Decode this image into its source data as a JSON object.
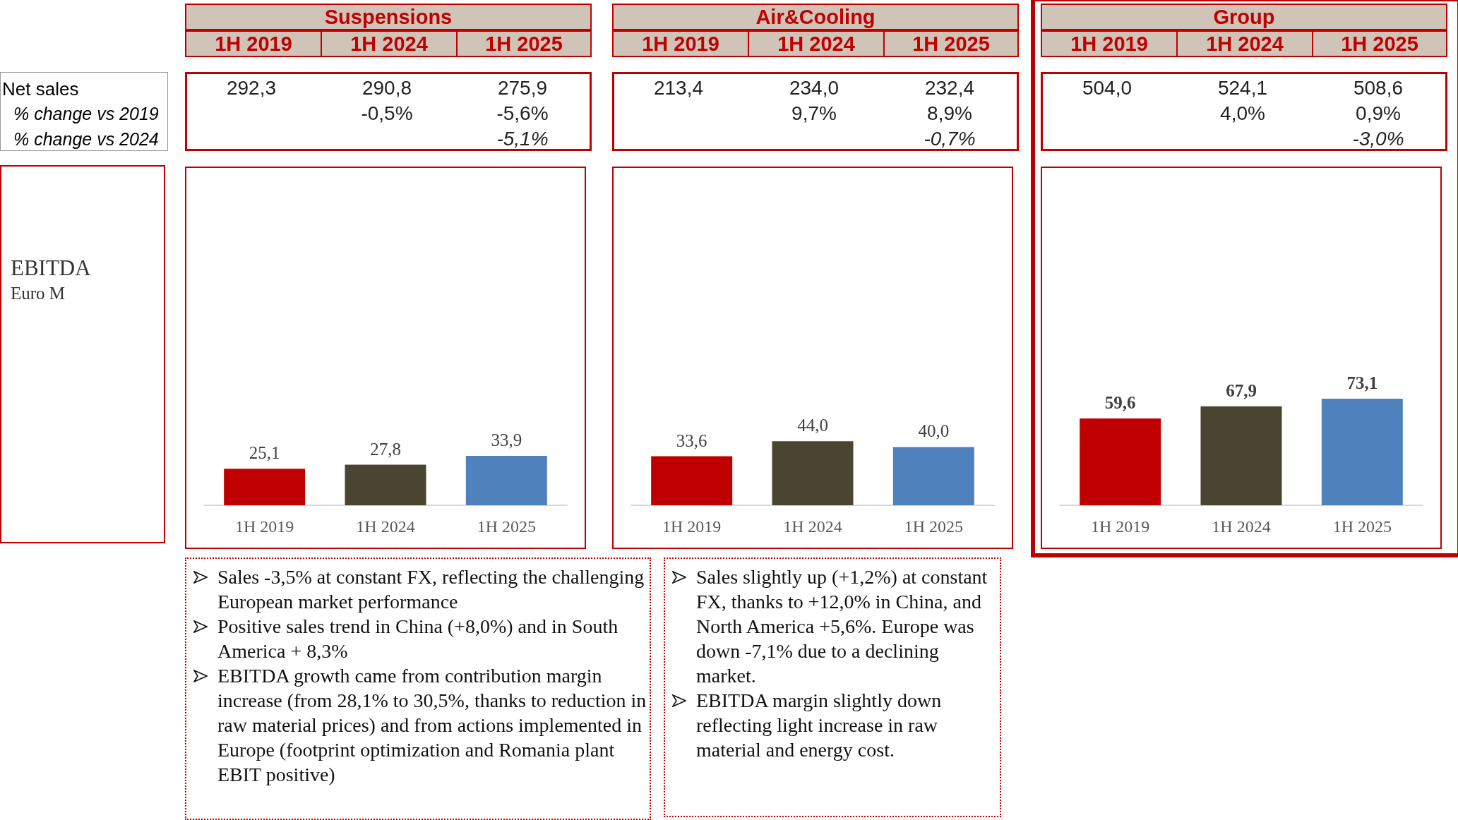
{
  "chart_data": [
    {
      "type": "other",
      "annotations": [
        "Net sales",
        "% change vs 2019",
        "% change vs 2024",
        "EBITDA",
        "Euro M"
      ]
    },
    {
      "type": "bar",
      "title": "Suspensions",
      "categories": [
        "1H 2019",
        "1H 2024",
        "1H 2025"
      ],
      "values": [
        25.1,
        27.8,
        33.9
      ],
      "colors": [
        "#c00000",
        "#4a4530",
        "#4f81bd"
      ],
      "value_labels": [
        "25,1",
        "27,8",
        "33,9"
      ],
      "annotations": [
        "292,3",
        "290,8",
        "275,9",
        "-0,5%",
        "-5,6%",
        "-5,1%"
      ]
    },
    {
      "type": "bar",
      "title": "Air&Cooling",
      "categories": [
        "1H 2019",
        "1H 2024",
        "1H 2025"
      ],
      "values": [
        33.6,
        44.0,
        40.0
      ],
      "colors": [
        "#c00000",
        "#4a4530",
        "#4f81bd"
      ],
      "value_labels": [
        "33,6",
        "44,0",
        "40,0"
      ],
      "annotations": [
        "213,4",
        "234,0",
        "232,4",
        "9,7%",
        "8,9%",
        "-0,7%"
      ]
    },
    {
      "type": "bar",
      "title": "Group",
      "categories": [
        "1H 2019",
        "1H 2024",
        "1H 2025"
      ],
      "values": [
        59.6,
        67.9,
        73.1
      ],
      "colors": [
        "#c00000",
        "#4a4530",
        "#4f81bd"
      ],
      "value_labels": [
        "59,6",
        "67,9",
        "73,1"
      ],
      "annotations": [
        "504,0",
        "524,1",
        "508,6",
        "4,0%",
        "0,9%",
        "-3,0%"
      ]
    },
    {
      "type": "other",
      "annotations": [
        "Sales -3,5% at constant FX, reflecting the challenging European market performance",
        "Positive sales trend in China (+8,0%) and in South America + 8,3%",
        "EBITDA growth came from contribution margin increase (from 28,1% to 30,5%, thanks to reduction in raw material prices) and from actions implemented in Europe (footprint optimization and Romania plant EBIT positive)"
      ]
    },
    {
      "type": "other",
      "annotations": [
        "Sales slightly up (+1,2%) at constant FX, thanks to +12,0% in China, and North America +5,6%. Europe was down -7,1% due to a declining market.",
        "EBITDA margin slightly down reflecting light increase in raw material and energy cost."
      ]
    }
  ]
}
